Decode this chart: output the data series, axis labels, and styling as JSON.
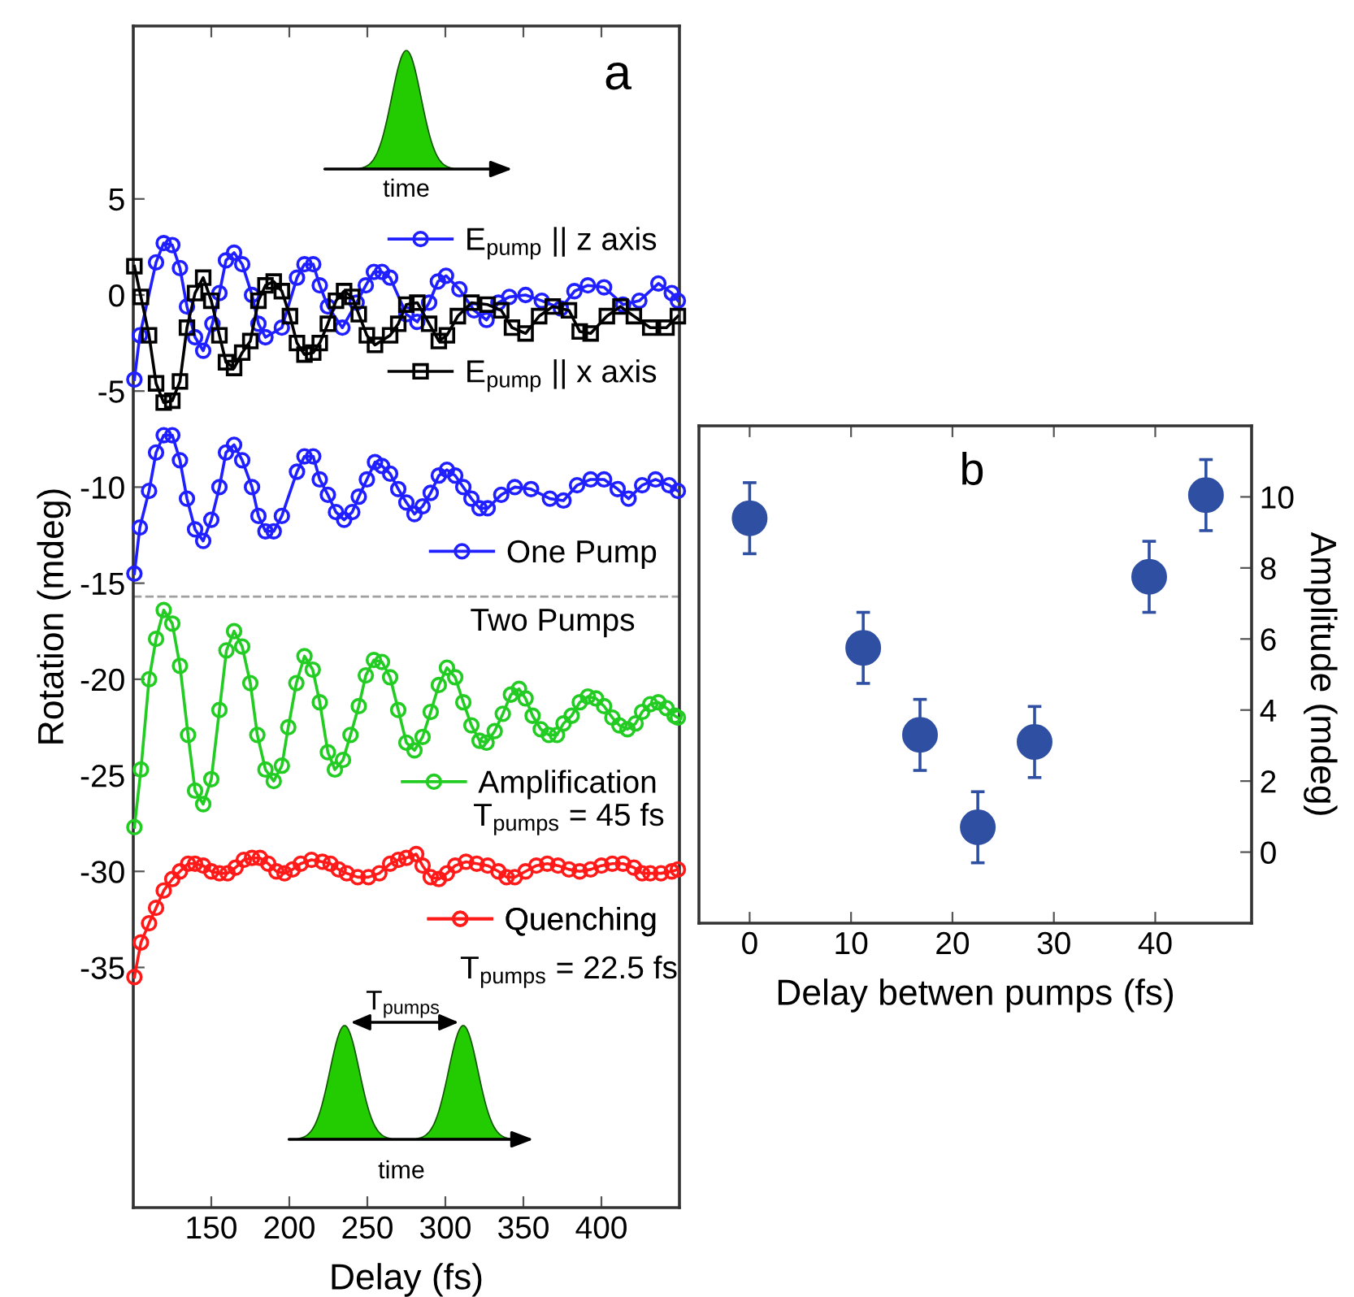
{
  "chart_data": [
    {
      "type": "line",
      "xlabel": "Delay (fs)",
      "ylabel": "Rotation (mdeg)",
      "xlim": [
        100,
        450
      ],
      "xticks": [
        150,
        200,
        250,
        300,
        350,
        400
      ],
      "ylim": [
        -47.5,
        14
      ],
      "yticks": [
        5,
        0,
        -5,
        -10,
        -15,
        -20,
        -25,
        -30,
        -35
      ],
      "grid": false,
      "legend": "right",
      "marker": "circle",
      "line_style": "solid",
      "ref_lines": [
        {
          "axis": "y",
          "value": -15.7,
          "color": "#a0a0a0",
          "line_style": "dashed"
        }
      ],
      "annotations": [
        "a",
        "Two Pumps",
        "T$_{pumps}$ = 45 fs",
        "T$_{pumps}$ = 22.5 fs",
        "time",
        "time",
        "T$_{pumps}$"
      ],
      "series": [
        {
          "name": "E$_{pump}$ || z axis",
          "color": "#1f1fff",
          "x": [
            100.7,
            104.2,
            114.6,
            119.5,
            125,
            129.9,
            134.4,
            139.6,
            144.8,
            150.7,
            155.2,
            159.4,
            164.6,
            169.8,
            176.1,
            180.2,
            184.7,
            195.2,
            204.9,
            209.7,
            215.3,
            219.5,
            224.7,
            234,
            243.1,
            249,
            254.2,
            259.4,
            264.6,
            275,
            282,
            289.6,
            295.2,
            300.4,
            309,
            318.4,
            326.4,
            334,
            341,
            351.4,
            361.8,
            374,
            382.7,
            391.3,
            401.7,
            413.9,
            424.3,
            436.5,
            445.1,
            449
          ],
          "values": [
            -4.4,
            -2.1,
            1.7,
            2.7,
            2.6,
            1.4,
            -0.6,
            -2.2,
            -2.9,
            -1.5,
            0.1,
            1.8,
            2.2,
            1.6,
            0.0,
            -1.5,
            -2.2,
            -1.7,
            0.9,
            1.6,
            1.6,
            0.5,
            -0.6,
            -1.7,
            -0.4,
            0.5,
            1.2,
            1.2,
            0.9,
            -1.0,
            -1.4,
            -0.4,
            0.7,
            1.0,
            0.3,
            -0.8,
            -1.3,
            -0.4,
            -0.1,
            0.0,
            -0.3,
            -0.7,
            0.2,
            0.5,
            0.4,
            -0.5,
            -0.3,
            0.6,
            0.1,
            -0.3
          ]
        },
        {
          "name": "E$_{pump}$ || x axis",
          "color": "#000000",
          "marker": "square",
          "x": [
            100.7,
            104.9,
            110.1,
            114.6,
            119.5,
            125,
            129.9,
            134.4,
            139.6,
            144.8,
            150,
            155.2,
            159.4,
            164.6,
            169.8,
            175,
            180.2,
            184.7,
            190,
            195.2,
            200.4,
            204.9,
            209.7,
            215.3,
            219.5,
            224.7,
            229.9,
            235.1,
            240.3,
            244.5,
            249.7,
            254.9,
            264.6,
            269.8,
            275,
            282,
            289.6,
            295.8,
            301,
            308,
            316.7,
            327.1,
            335.8,
            342.7,
            351.4,
            360.1,
            368.8,
            379.2,
            386.1,
            393.1,
            403.5,
            412.2,
            420.8,
            431.3,
            441.7,
            449
          ],
          "values": [
            1.5,
            -0.1,
            -2.1,
            -4.6,
            -5.6,
            -5.5,
            -4.5,
            -1.7,
            0.1,
            0.9,
            -0.3,
            -2.1,
            -3.5,
            -3.8,
            -3.0,
            -2.4,
            -0.3,
            0.5,
            0.7,
            0.2,
            -1.1,
            -2.5,
            -3.1,
            -3.0,
            -2.5,
            -1.5,
            -0.3,
            0.2,
            -0.1,
            -1.0,
            -2.1,
            -2.6,
            -2.1,
            -1.5,
            -0.5,
            -0.4,
            -1.5,
            -2.4,
            -2.1,
            -1.1,
            -0.4,
            -0.5,
            -0.8,
            -1.7,
            -2.0,
            -1.1,
            -0.6,
            -0.8,
            -1.9,
            -2.0,
            -1.1,
            -0.6,
            -1.1,
            -1.7,
            -1.7,
            -1.1
          ]
        },
        {
          "name": "One Pump",
          "color": "#1f1fff",
          "x": [
            100.7,
            104.2,
            110.1,
            114.6,
            119.5,
            125,
            129.9,
            134.4,
            139.6,
            144.8,
            150,
            155.2,
            159.4,
            164.6,
            169.8,
            176.1,
            180.2,
            184.7,
            190,
            195.2,
            204.9,
            209.7,
            215.3,
            219.5,
            224.7,
            229.9,
            235.1,
            240.3,
            244.5,
            249.7,
            254.9,
            259.4,
            264.6,
            269.8,
            275,
            280.2,
            285.4,
            290.6,
            295.8,
            301,
            306.3,
            311.5,
            316.7,
            321.9,
            327.1,
            335.8,
            344.5,
            354.9,
            367,
            375.7,
            384.4,
            393.1,
            401.7,
            410.4,
            417.4,
            426.1,
            434.7,
            443.4,
            449
          ],
          "values": [
            -14.5,
            -12.1,
            -10.2,
            -8.2,
            -7.3,
            -7.3,
            -8.6,
            -10.6,
            -12.2,
            -12.8,
            -11.7,
            -10.0,
            -8.2,
            -7.8,
            -8.6,
            -10.0,
            -11.5,
            -12.3,
            -12.3,
            -11.5,
            -9.2,
            -8.4,
            -8.4,
            -9.6,
            -10.4,
            -11.3,
            -11.7,
            -11.3,
            -10.5,
            -9.6,
            -8.7,
            -8.9,
            -9.3,
            -10.1,
            -10.8,
            -11.4,
            -11.0,
            -10.3,
            -9.4,
            -9.1,
            -9.4,
            -10.0,
            -10.6,
            -11.1,
            -11.1,
            -10.4,
            -10.0,
            -10.1,
            -10.6,
            -10.7,
            -9.9,
            -9.6,
            -9.6,
            -10.1,
            -10.6,
            -9.9,
            -9.6,
            -9.9,
            -10.2
          ]
        },
        {
          "name": "Amplification",
          "color": "#22cc22",
          "x": [
            100.7,
            104.9,
            110.1,
            114.6,
            119.5,
            125,
            129.9,
            135.1,
            139.6,
            144.8,
            150,
            155.2,
            159.7,
            164.6,
            169.8,
            175,
            179.5,
            184.7,
            190,
            195.2,
            199.3,
            204.5,
            209.7,
            215,
            219.5,
            224.7,
            229.2,
            234.4,
            239.2,
            244.5,
            249,
            254.2,
            259.4,
            264.6,
            269.8,
            275,
            280.2,
            285.4,
            290.6,
            295.8,
            301,
            306.3,
            311.5,
            316.7,
            321.9,
            326.4,
            331.6,
            336.8,
            342,
            347.2,
            351.4,
            355.9,
            361.1,
            366.3,
            371.5,
            375.7,
            380.9,
            386.1,
            391.3,
            396.5,
            401.7,
            407,
            411.5,
            416.7,
            421.9,
            426.1,
            431.3,
            436.5,
            441.7,
            446.9,
            449
          ],
          "values": [
            -27.7,
            -24.7,
            -20.0,
            -17.9,
            -16.4,
            -17.1,
            -19.3,
            -22.9,
            -25.8,
            -26.5,
            -25.2,
            -21.6,
            -18.5,
            -17.5,
            -18.3,
            -20.2,
            -22.9,
            -24.7,
            -25.3,
            -24.5,
            -22.5,
            -20.2,
            -18.8,
            -19.5,
            -21.2,
            -23.8,
            -24.7,
            -24.2,
            -22.9,
            -21.4,
            -19.8,
            -19.0,
            -19.1,
            -19.9,
            -21.6,
            -23.3,
            -23.7,
            -23.0,
            -21.7,
            -20.3,
            -19.4,
            -19.9,
            -21.2,
            -22.4,
            -23.2,
            -23.3,
            -22.7,
            -21.8,
            -20.8,
            -20.5,
            -21.0,
            -21.9,
            -22.6,
            -22.9,
            -22.9,
            -22.3,
            -21.9,
            -21.2,
            -20.9,
            -21.0,
            -21.4,
            -22.0,
            -22.4,
            -22.6,
            -22.3,
            -21.7,
            -21.3,
            -21.2,
            -21.5,
            -21.9,
            -22.0
          ]
        },
        {
          "name": "Quenching",
          "color": "#ff1a1a",
          "x": [
            100.7,
            104.9,
            110.1,
            114.6,
            119.5,
            125,
            129.9,
            135.1,
            139.6,
            144.8,
            150,
            155.2,
            160.4,
            165.6,
            170.8,
            176.1,
            181.2,
            186.5,
            191.7,
            196.9,
            202.1,
            207.3,
            214.2,
            221.2,
            226.4,
            231.6,
            236.8,
            243.8,
            250.7,
            257.7,
            264.6,
            269.8,
            275,
            281.3,
            285.4,
            290.6,
            295.8,
            301,
            306.3,
            313.2,
            320.1,
            327.1,
            334,
            339.2,
            344.5,
            351.4,
            358.3,
            365.3,
            372.2,
            379.2,
            386.1,
            393.1,
            400,
            407,
            413.9,
            420.8,
            426.1,
            431.3,
            438.2,
            445.1,
            449
          ],
          "values": [
            -35.5,
            -33.7,
            -32.7,
            -31.9,
            -31.0,
            -30.4,
            -30.0,
            -29.6,
            -29.6,
            -29.7,
            -30.0,
            -30.1,
            -30.1,
            -29.8,
            -29.4,
            -29.3,
            -29.3,
            -29.6,
            -30.0,
            -30.1,
            -29.9,
            -29.6,
            -29.4,
            -29.5,
            -29.6,
            -29.9,
            -30.1,
            -30.3,
            -30.3,
            -30.1,
            -29.6,
            -29.4,
            -29.3,
            -29.1,
            -29.7,
            -30.3,
            -30.4,
            -30.1,
            -29.7,
            -29.5,
            -29.6,
            -29.7,
            -30.0,
            -30.3,
            -30.3,
            -30.0,
            -29.7,
            -29.6,
            -29.7,
            -29.9,
            -30.0,
            -29.9,
            -29.7,
            -29.6,
            -29.6,
            -29.8,
            -30.1,
            -30.1,
            -30.1,
            -30.0,
            -29.9
          ]
        }
      ]
    },
    {
      "type": "scatter",
      "xlabel": "Delay betwen pumps (fs)",
      "y2label": "Amplitude (mdeg)",
      "xlim": [
        -5,
        49.5
      ],
      "xticks": [
        0,
        10,
        20,
        30,
        40
      ],
      "y2lim": [
        -2,
        12
      ],
      "y2ticks": [
        0,
        2,
        4,
        6,
        8,
        10
      ],
      "grid": false,
      "marker": "circle",
      "annotations": [
        "b"
      ],
      "series": [
        {
          "axis": "y2",
          "color": "#2f4fa3",
          "x": [
            0,
            11.2,
            16.8,
            22.5,
            28.1,
            39.4,
            45
          ],
          "values": [
            9.4,
            5.75,
            3.3,
            0.7,
            3.1,
            7.75,
            10.05
          ],
          "errors": [
            1,
            1,
            1,
            1,
            1,
            1,
            1
          ]
        }
      ]
    }
  ]
}
